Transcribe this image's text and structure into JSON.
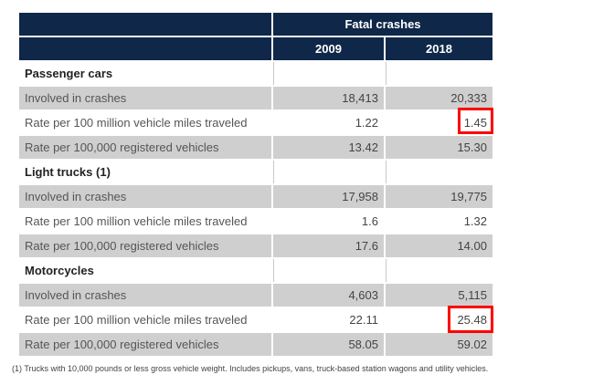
{
  "table": {
    "header_group": "Fatal crashes",
    "year1": "2009",
    "year2": "2018",
    "sections": [
      {
        "title": "Passenger cars",
        "rows": [
          {
            "label": "Involved in crashes",
            "v2009": "18,413",
            "v2018": "20,333"
          },
          {
            "label": "Rate per 100 million vehicle miles traveled",
            "v2009": "1.22",
            "v2018": "1.45"
          },
          {
            "label": "Rate per 100,000 registered vehicles",
            "v2009": "13.42",
            "v2018": "15.30"
          }
        ]
      },
      {
        "title": "Light trucks (1)",
        "rows": [
          {
            "label": "Involved in crashes",
            "v2009": "17,958",
            "v2018": "19,775"
          },
          {
            "label": "Rate per 100 million vehicle miles traveled",
            "v2009": "1.6",
            "v2018": "1.32"
          },
          {
            "label": "Rate per 100,000 registered vehicles",
            "v2009": "17.6",
            "v2018": "14.00"
          }
        ]
      },
      {
        "title": "Motorcycles",
        "rows": [
          {
            "label": "Involved in crashes",
            "v2009": "4,603",
            "v2018": "5,115"
          },
          {
            "label": "Rate per 100 million vehicle miles traveled",
            "v2009": "22.11",
            "v2018": "25.48"
          },
          {
            "label": "Rate per 100,000 registered vehicles",
            "v2009": "58.05",
            "v2018": "59.02"
          }
        ]
      }
    ]
  },
  "highlight_color": "#ff0000",
  "footnote": "(1) Trucks with 10,000 pounds or less gross vehicle weight. Includes pickups, vans, truck-based station wagons and utility vehicles."
}
